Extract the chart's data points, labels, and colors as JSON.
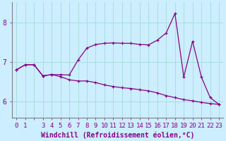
{
  "xlabel": "Windchill (Refroidissement éolien,°C)",
  "x": [
    0,
    1,
    2,
    3,
    4,
    5,
    6,
    7,
    8,
    9,
    10,
    11,
    12,
    13,
    14,
    15,
    16,
    17,
    18,
    19,
    20,
    21,
    22,
    23
  ],
  "y_upper": [
    6.8,
    6.93,
    6.93,
    6.65,
    6.68,
    6.68,
    6.67,
    7.05,
    7.35,
    7.44,
    7.47,
    7.48,
    7.47,
    7.47,
    7.44,
    7.43,
    7.55,
    7.73,
    8.22,
    6.62,
    7.52,
    6.62,
    6.1,
    5.93
  ],
  "y_lower": [
    6.8,
    6.93,
    6.93,
    6.65,
    6.68,
    6.63,
    6.55,
    6.52,
    6.52,
    6.48,
    6.42,
    6.38,
    6.35,
    6.33,
    6.3,
    6.27,
    6.22,
    6.15,
    6.1,
    6.05,
    6.02,
    5.98,
    5.95,
    5.93
  ],
  "color": "#880088",
  "bg_color": "#cceeff",
  "grid_color": "#aadddd",
  "ylim": [
    5.6,
    8.5
  ],
  "xlim": [
    -0.5,
    23.5
  ],
  "yticks": [
    6,
    7,
    8
  ],
  "xtick_labels": [
    "0",
    "1",
    "",
    "3",
    "4",
    "5",
    "6",
    "7",
    "8",
    "9",
    "10",
    "11",
    "12",
    "13",
    "14",
    "15",
    "16",
    "17",
    "18",
    "19",
    "20",
    "21",
    "22",
    "23"
  ],
  "xticks": [
    0,
    1,
    2,
    3,
    4,
    5,
    6,
    7,
    8,
    9,
    10,
    11,
    12,
    13,
    14,
    15,
    16,
    17,
    18,
    19,
    20,
    21,
    22,
    23
  ],
  "spine_color": "#808080",
  "label_color": "#880088",
  "label_fontsize": 7.0,
  "tick_fontsize": 6.5
}
